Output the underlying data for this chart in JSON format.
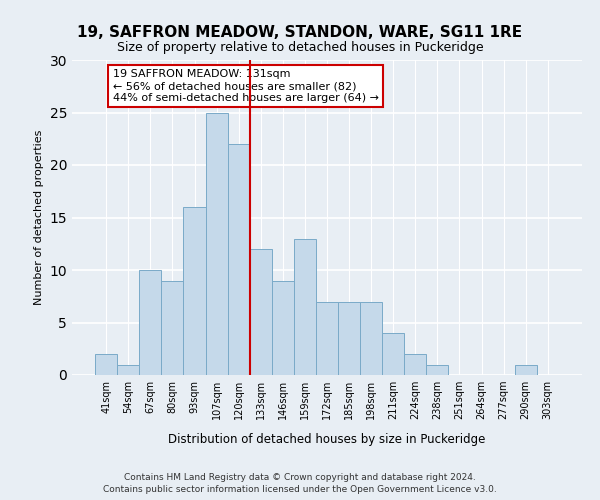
{
  "title": "19, SAFFRON MEADOW, STANDON, WARE, SG11 1RE",
  "subtitle": "Size of property relative to detached houses in Puckeridge",
  "xlabel": "Distribution of detached houses by size in Puckeridge",
  "ylabel": "Number of detached properties",
  "bar_labels": [
    "41sqm",
    "54sqm",
    "67sqm",
    "80sqm",
    "93sqm",
    "107sqm",
    "120sqm",
    "133sqm",
    "146sqm",
    "159sqm",
    "172sqm",
    "185sqm",
    "198sqm",
    "211sqm",
    "224sqm",
    "238sqm",
    "251sqm",
    "264sqm",
    "277sqm",
    "290sqm",
    "303sqm"
  ],
  "bar_values": [
    2,
    1,
    10,
    9,
    16,
    25,
    22,
    12,
    9,
    13,
    7,
    7,
    7,
    4,
    2,
    1,
    0,
    0,
    0,
    1,
    0
  ],
  "bar_color": "#c5d9ea",
  "bar_edge_color": "#7aaac8",
  "property_line_index": 7,
  "property_line_color": "#cc0000",
  "ylim": [
    0,
    30
  ],
  "yticks": [
    0,
    5,
    10,
    15,
    20,
    25,
    30
  ],
  "annotation_title": "19 SAFFRON MEADOW: 131sqm",
  "annotation_line1": "← 56% of detached houses are smaller (82)",
  "annotation_line2": "44% of semi-detached houses are larger (64) →",
  "annotation_box_facecolor": "#ffffff",
  "annotation_box_edgecolor": "#cc0000",
  "footer_line1": "Contains HM Land Registry data © Crown copyright and database right 2024.",
  "footer_line2": "Contains public sector information licensed under the Open Government Licence v3.0.",
  "background_color": "#e8eef4",
  "grid_color": "#ffffff",
  "plot_bg_color": "#dce8f0"
}
